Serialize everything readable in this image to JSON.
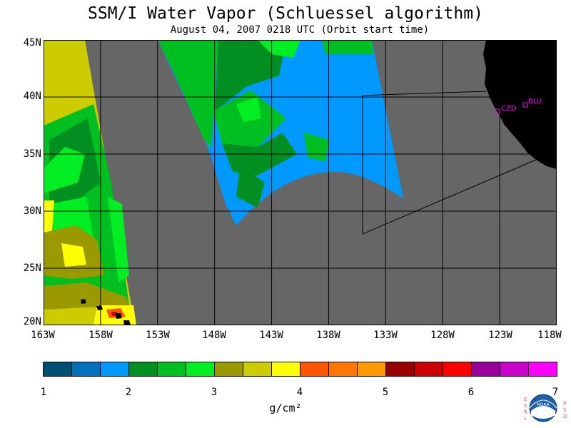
{
  "title": "SSM/I Water Vapor (Schluessel algorithm)",
  "subtitle": "August 04, 2007  0218 UTC  (Orbit start time)",
  "map": {
    "lon_range": [
      -163,
      -118
    ],
    "lat_range": [
      20,
      45
    ],
    "ocean_color": "#666666",
    "land_color": "#000000",
    "grid_color": "#000000",
    "lat_labels": [
      "45N",
      "40N",
      "35N",
      "30N",
      "25N",
      "20N"
    ],
    "lon_labels": [
      "163W",
      "158W",
      "153W",
      "148W",
      "143W",
      "138W",
      "133W",
      "128W",
      "123W",
      "118W"
    ],
    "stations": [
      {
        "name": "CZD",
        "lon": -123.3,
        "lat": 38.6
      },
      {
        "name": "BLU",
        "lon": -121.1,
        "lat": 39.2
      }
    ]
  },
  "colorbar": {
    "colors": [
      "#004f73",
      "#0072bd",
      "#0099ff",
      "#008f20",
      "#00c021",
      "#00ee22",
      "#9a9a00",
      "#cccc00",
      "#ffff00",
      "#ff5500",
      "#ff7700",
      "#ff9900",
      "#990000",
      "#cc0000",
      "#ff0000",
      "#990099",
      "#cc00cc",
      "#ff00ff"
    ],
    "ticks": [
      "1",
      "2",
      "3",
      "4",
      "5",
      "6",
      "7"
    ],
    "unit": "g/cm²"
  },
  "logo": {
    "left_text": "ESRL",
    "right_text": "PSD",
    "center_text": "NOAA"
  }
}
